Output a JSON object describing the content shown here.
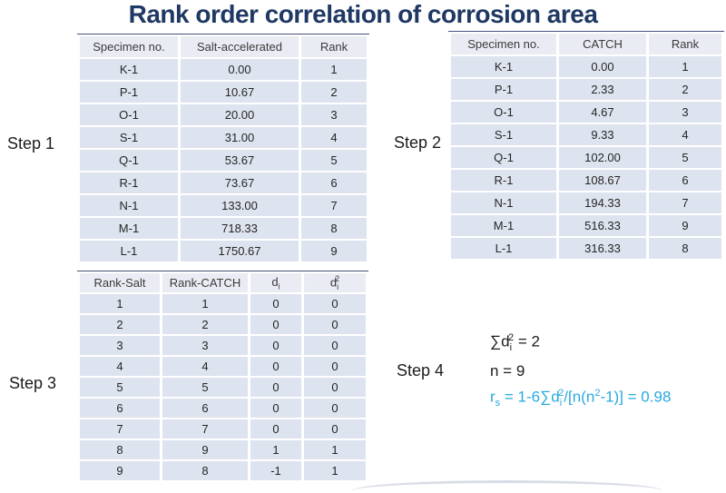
{
  "title": "Rank order correlation of corrosion area",
  "colors": {
    "title_navy": "#1f3864",
    "formula_blue": "#29a9e1",
    "row_bg": "#dde3ef",
    "header_bg": "#e9ecf3",
    "table_top_border": "#44517a"
  },
  "steps": {
    "step1": "Step 1",
    "step2": "Step 2",
    "step3": "Step 3",
    "step4": "Step 4"
  },
  "table1": {
    "headers": [
      "Specimen no.",
      "Salt-accelerated",
      "Rank"
    ],
    "rows": [
      [
        "K-1",
        "0.00",
        "1"
      ],
      [
        "P-1",
        "10.67",
        "2"
      ],
      [
        "O-1",
        "20.00",
        "3"
      ],
      [
        "S-1",
        "31.00",
        "4"
      ],
      [
        "Q-1",
        "53.67",
        "5"
      ],
      [
        "R-1",
        "73.67",
        "6"
      ],
      [
        "N-1",
        "133.00",
        "7"
      ],
      [
        "M-1",
        "718.33",
        "8"
      ],
      [
        "L-1",
        "1750.67",
        "9"
      ]
    ]
  },
  "table2": {
    "headers": [
      "Specimen no.",
      "CATCH",
      "Rank"
    ],
    "rows": [
      [
        "K-1",
        "0.00",
        "1"
      ],
      [
        "P-1",
        "2.33",
        "2"
      ],
      [
        "O-1",
        "4.67",
        "3"
      ],
      [
        "S-1",
        "9.33",
        "4"
      ],
      [
        "Q-1",
        "102.00",
        "5"
      ],
      [
        "R-1",
        "108.67",
        "6"
      ],
      [
        "N-1",
        "194.33",
        "7"
      ],
      [
        "M-1",
        "516.33",
        "9"
      ],
      [
        "L-1",
        "316.33",
        "8"
      ]
    ]
  },
  "table3": {
    "headers": [
      "Rank-Salt",
      "Rank-CATCH"
    ],
    "di": {
      "base": "d",
      "sub": "i"
    },
    "di2": {
      "base": "d",
      "sub": "i",
      "sup": "2"
    },
    "rows": [
      [
        "1",
        "1",
        "0",
        "0"
      ],
      [
        "2",
        "2",
        "0",
        "0"
      ],
      [
        "3",
        "3",
        "0",
        "0"
      ],
      [
        "4",
        "4",
        "0",
        "0"
      ],
      [
        "5",
        "5",
        "0",
        "0"
      ],
      [
        "6",
        "6",
        "0",
        "0"
      ],
      [
        "7",
        "7",
        "0",
        "0"
      ],
      [
        "8",
        "9",
        "1",
        "1"
      ],
      [
        "9",
        "8",
        "-1",
        "1"
      ]
    ]
  },
  "step4": {
    "line1": {
      "pre": "∑d",
      "sub": "i",
      "sup": "2",
      "post": " = 2"
    },
    "line2": "n = 9",
    "line3": {
      "p1": "r",
      "s1": "s",
      "p2": " = 1-6∑d",
      "s2": "i",
      "u2": "2",
      "p3": "/[n(n",
      "u3": "2",
      "p4": "-1)] = 0.98"
    }
  }
}
